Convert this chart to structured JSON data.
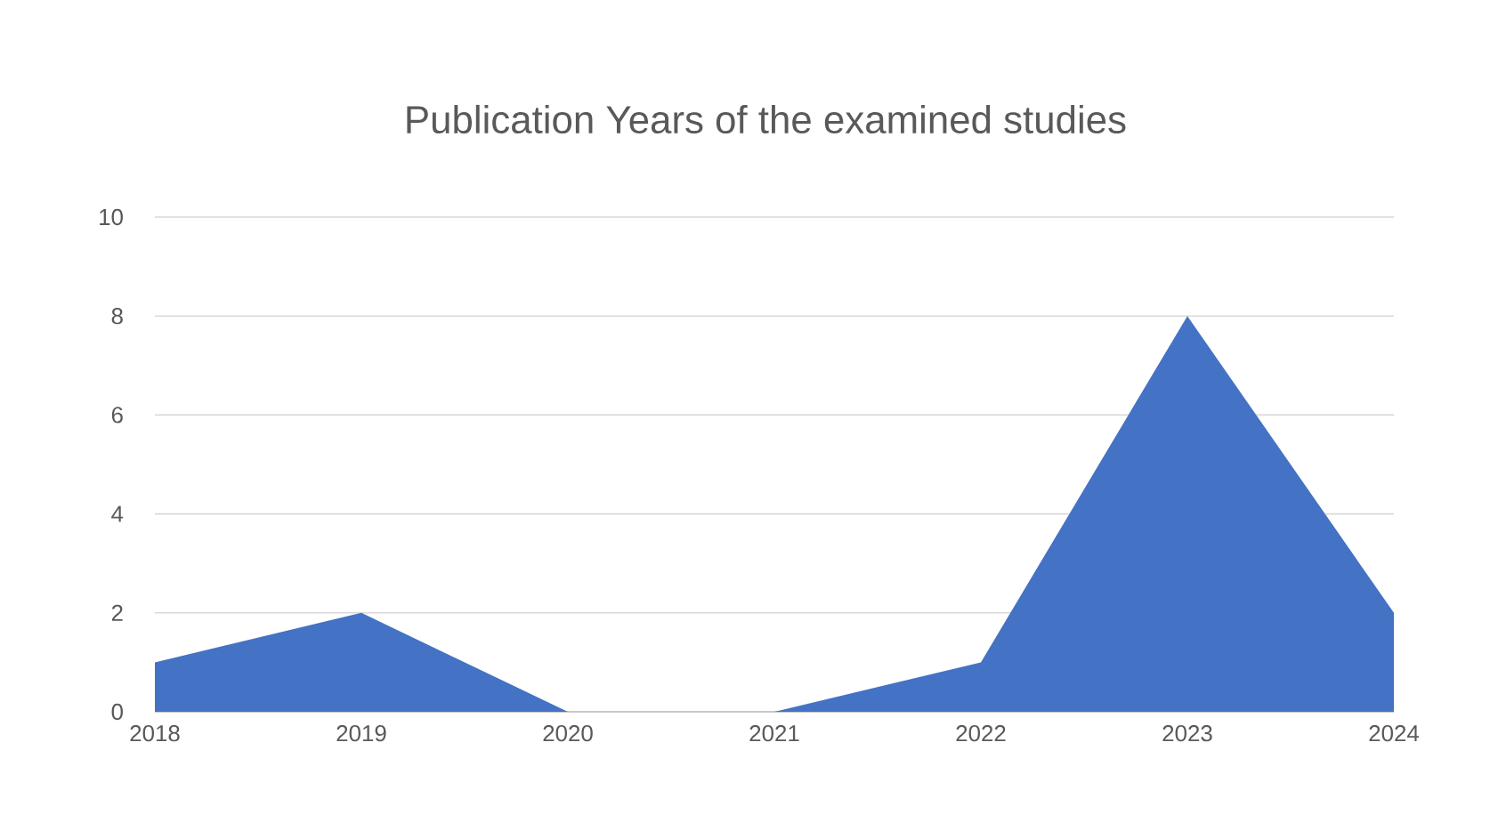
{
  "chart_data": {
    "type": "area",
    "title": "Publication Years of the examined studies",
    "categories": [
      "2018",
      "2019",
      "2020",
      "2021",
      "2022",
      "2023",
      "2024"
    ],
    "values": [
      1,
      2,
      0,
      0,
      1,
      8,
      2
    ],
    "color": "#4472c4",
    "ylim": [
      0,
      10
    ],
    "yticks": [
      0,
      2,
      4,
      6,
      8,
      10
    ],
    "grid": "y"
  }
}
